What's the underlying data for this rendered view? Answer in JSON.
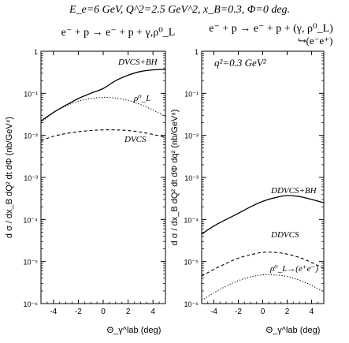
{
  "header": {
    "kinematics": "E_e=6 GeV, Q^2=2.5 GeV^2, x_B=0.3, Φ=0 deg.",
    "left_reaction": "e⁻ + p → e⁻ + p + γ,ρ⁰_L",
    "right_reaction": "e⁻ + p → e⁻ + p + (γ, ρ⁰_L)",
    "right_decay": "↪(e⁻e⁺)"
  },
  "chart_data": [
    {
      "type": "line",
      "panel": "left",
      "ylabel": "d σ / dx_B dQ² dt dΦ  (nb/GeV⁴)",
      "xlabel": "Θ_γ^lab (deg)",
      "xlim": [
        -5,
        5
      ],
      "ylim": [
        1e-06,
        1
      ],
      "yscale": "log",
      "x_ticks": [
        "-4",
        "-2",
        "0",
        "2",
        "4"
      ],
      "y_ticks": [
        "10⁻⁶",
        "10⁻⁵",
        "10⁻⁴",
        "10⁻³",
        "10⁻²",
        "10⁻¹",
        "1"
      ],
      "annotation": "",
      "series": [
        {
          "name": "DVCS+BH",
          "style": "solid",
          "x": [
            -5,
            -4,
            -3,
            -2,
            -1,
            0,
            1,
            2,
            3,
            4,
            5
          ],
          "y": [
            0.022,
            0.035,
            0.052,
            0.075,
            0.1,
            0.13,
            0.2,
            0.27,
            0.33,
            0.36,
            0.37
          ]
        },
        {
          "name": "ρ⁰_L",
          "style": "dotted",
          "x": [
            -5,
            -4,
            -3,
            -2,
            -1,
            0,
            1,
            2,
            3,
            4,
            5
          ],
          "y": [
            0.02,
            0.035,
            0.05,
            0.065,
            0.075,
            0.08,
            0.077,
            0.068,
            0.054,
            0.04,
            0.028
          ]
        },
        {
          "name": "DVCS",
          "style": "dashed",
          "x": [
            -5,
            -4,
            -3,
            -2,
            -1,
            0,
            1,
            2,
            3,
            4,
            5
          ],
          "y": [
            0.0075,
            0.0095,
            0.011,
            0.0122,
            0.013,
            0.0135,
            0.0135,
            0.013,
            0.012,
            0.0105,
            0.009
          ]
        }
      ]
    },
    {
      "type": "line",
      "panel": "right",
      "ylabel": "d σ / dx_B dQ² dt dΦ dq²  (nb/GeV⁶)",
      "xlabel": "Θ_γ^lab (deg)",
      "xlim": [
        -5,
        5
      ],
      "ylim": [
        1e-06,
        1
      ],
      "yscale": "log",
      "x_ticks": [
        "-4",
        "-2",
        "0",
        "2",
        "4"
      ],
      "y_ticks": [
        "10⁻⁶",
        "10⁻⁵",
        "10⁻⁴",
        "10⁻³",
        "10⁻²",
        "10⁻¹",
        "1"
      ],
      "annotation": "q²=0.3 GeV²",
      "series": [
        {
          "name": "DDVCS+BH",
          "style": "solid",
          "x": [
            -5,
            -4,
            -3,
            -2,
            -1,
            0,
            1,
            2,
            3,
            4,
            5
          ],
          "y": [
            4.5e-05,
            7e-05,
            0.0001,
            0.00014,
            0.0002,
            0.00027,
            0.00033,
            0.00037,
            0.00035,
            0.0003,
            0.00025
          ]
        },
        {
          "name": "DDVCS",
          "style": "dashed",
          "x": [
            -5,
            -4,
            -3,
            -2,
            -1,
            0,
            1,
            2,
            3,
            4,
            5
          ],
          "y": [
            4.5e-06,
            6.5e-06,
            9e-06,
            1.2e-05,
            1.45e-05,
            1.65e-05,
            1.65e-05,
            1.5e-05,
            1.25e-05,
            9.5e-06,
            6.8e-06
          ]
        },
        {
          "name": "ρ⁰_L→(e⁺e⁻)",
          "style": "dotted",
          "x": [
            -5,
            -4,
            -3,
            -2,
            -1,
            0,
            1,
            2,
            3,
            4,
            5
          ],
          "y": [
            1.2e-06,
            1.8e-06,
            2.6e-06,
            3.5e-06,
            4.3e-06,
            4.8e-06,
            4.8e-06,
            4.4e-06,
            3.6e-06,
            2.7e-06,
            1.9e-06
          ]
        }
      ]
    }
  ]
}
